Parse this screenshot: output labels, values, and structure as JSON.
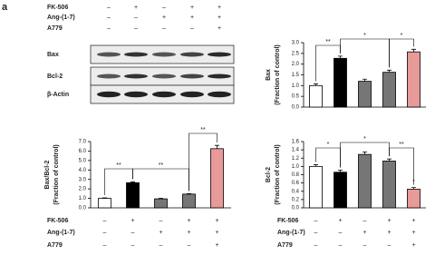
{
  "panel_label": "a",
  "treatments": {
    "rows": [
      {
        "label": "FK-506",
        "signs": [
          "–",
          "+",
          "–",
          "+",
          "+"
        ]
      },
      {
        "label": "Ang-(1-7)",
        "signs": [
          "–",
          "–",
          "+",
          "+",
          "+"
        ]
      },
      {
        "label": "A779",
        "signs": [
          "–",
          "–",
          "–",
          "–",
          "+"
        ]
      }
    ]
  },
  "blot": {
    "labels": [
      "Bax",
      "Bcl-2",
      "β-Actin"
    ]
  },
  "chart_data": [
    {
      "type": "bar",
      "ylabel": [
        "Bax",
        "(Fraction of control)"
      ],
      "categories": [
        null,
        null,
        null,
        null,
        null
      ],
      "values": [
        1.0,
        2.27,
        1.2,
        1.62,
        2.57
      ],
      "errors": [
        0.08,
        0.1,
        0.1,
        0.1,
        0.12
      ],
      "colors": [
        "#ffffff",
        "#000000",
        "#767676",
        "#767676",
        "#e89a98"
      ],
      "ylim": [
        0,
        3
      ],
      "yticks": [
        {
          "value": 0,
          "label": "0.0"
        },
        {
          "value": 0.5,
          "label": "0.5"
        },
        {
          "value": 1,
          "label": "1.0"
        },
        {
          "value": 1.5,
          "label": "1.5"
        },
        {
          "value": 2,
          "label": "2.0"
        },
        {
          "value": 2.5,
          "label": "2.5"
        },
        {
          "value": 3,
          "label": "3.0"
        }
      ],
      "annotations": [
        "**",
        "*",
        "*"
      ]
    },
    {
      "type": "bar",
      "ylabel": [
        "Bax/Bcl-2",
        "(Fraction of control)"
      ],
      "categories": [
        null,
        null,
        null,
        null,
        null
      ],
      "values": [
        1.0,
        2.65,
        0.95,
        1.45,
        6.25
      ],
      "errors": [
        0.05,
        0.1,
        0.05,
        0.05,
        0.35
      ],
      "colors": [
        "#ffffff",
        "#000000",
        "#767676",
        "#767676",
        "#e89a98"
      ],
      "ylim": [
        0,
        7
      ],
      "yticks": [
        {
          "value": 0,
          "label": "0.0"
        },
        {
          "value": 1,
          "label": "1.0"
        },
        {
          "value": 2,
          "label": "2.0"
        },
        {
          "value": 3,
          "label": "3.0"
        },
        {
          "value": 4,
          "label": "4.0"
        },
        {
          "value": 5,
          "label": "5.0"
        },
        {
          "value": 6,
          "label": "6.0"
        },
        {
          "value": 7,
          "label": "7.0"
        }
      ],
      "annotations": [
        "**",
        "**",
        "**"
      ]
    },
    {
      "type": "bar",
      "ylabel": [
        "Bcl-2",
        "(Fraction of control)"
      ],
      "categories": [
        null,
        null,
        null,
        null,
        null
      ],
      "values": [
        1.0,
        0.86,
        1.29,
        1.13,
        0.45
      ],
      "errors": [
        0.04,
        0.05,
        0.06,
        0.05,
        0.04
      ],
      "colors": [
        "#ffffff",
        "#000000",
        "#767676",
        "#767676",
        "#e89a98"
      ],
      "ylim": [
        0,
        1.6
      ],
      "yticks": [
        {
          "value": 0,
          "label": "0.0"
        },
        {
          "value": 0.2,
          "label": "0.2"
        },
        {
          "value": 0.4,
          "label": "0.4"
        },
        {
          "value": 0.6,
          "label": "0.6"
        },
        {
          "value": 0.8,
          "label": "0.8"
        },
        {
          "value": 1,
          "label": "1.0"
        },
        {
          "value": 1.2,
          "label": "1.2"
        },
        {
          "value": 1.4,
          "label": "1.4"
        },
        {
          "value": 1.6,
          "label": "1.6"
        }
      ],
      "annotations": [
        "*",
        "*",
        "**",
        "*"
      ]
    }
  ]
}
